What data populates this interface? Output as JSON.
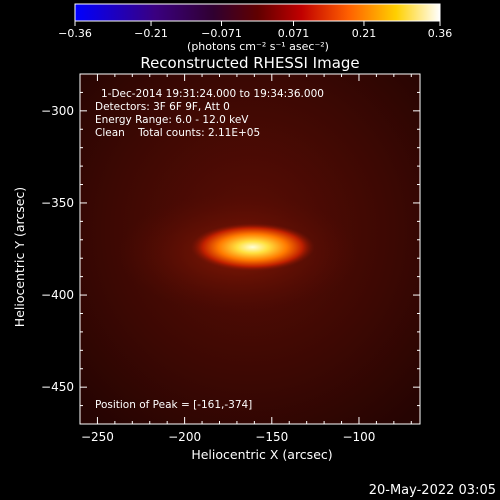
{
  "chart_data": {
    "type": "heatmap",
    "title": "Reconstructed RHESSI Image",
    "xlabel": "Heliocentric X (arcsec)",
    "ylabel": "Heliocentric Y (arcsec)",
    "xlim": [
      -260,
      -65
    ],
    "ylim": [
      -470,
      -280
    ],
    "x_ticks": [
      -250,
      -200,
      -150,
      -100
    ],
    "y_ticks": [
      -450,
      -400,
      -350,
      -300
    ],
    "colorbar": {
      "ticks": [
        "-0.36",
        "-0.21",
        "-0.071",
        "0.071",
        "0.21",
        "0.36"
      ],
      "range": [
        -0.36,
        0.36
      ],
      "unit_label": "(photons cm⁻² s⁻¹ asec⁻²)"
    },
    "info_lines": [
      "1-Dec-2014 19:31:24.000 to 19:34:36.000",
      "Detectors: 3F 6F 9F, Att 0",
      "Energy Range: 6.0 - 12.0 keV",
      "Clean    Total counts: 2.11E+05"
    ],
    "peak_label": "Position of Peak = [-161,-374]",
    "peak": {
      "x": -161,
      "y": -374,
      "value": 0.36
    },
    "timestamp": "20-May-2022 03:05"
  }
}
